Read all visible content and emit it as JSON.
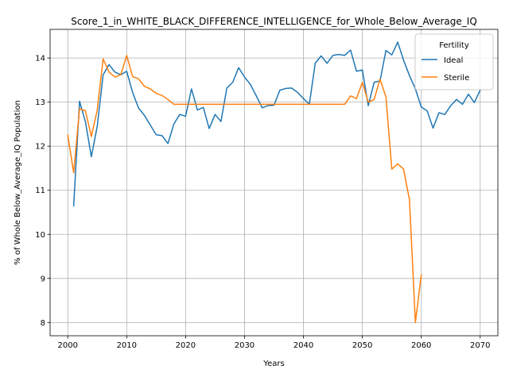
{
  "chart_data": {
    "type": "line",
    "title": "Score_1_in_WHITE_BLACK_DIFFERENCE_INTELLIGENCE_for_Whole_Below_Average_IQ",
    "xlabel": "Years",
    "ylabel": "% of Whole Below_Average_IQ Population",
    "xlim": [
      1997,
      2073
    ],
    "ylim": [
      7.7,
      14.65
    ],
    "xticks": [
      2000,
      2010,
      2020,
      2030,
      2040,
      2050,
      2060,
      2070
    ],
    "yticks": [
      8,
      9,
      10,
      11,
      12,
      13,
      14
    ],
    "grid": true,
    "legend": {
      "title": "Fertility",
      "position": "top-right"
    },
    "series": [
      {
        "name": "Ideal",
        "color": "#1f77b4",
        "x": [
          2001,
          2002,
          2003,
          2004,
          2005,
          2006,
          2007,
          2008,
          2009,
          2010,
          2011,
          2012,
          2013,
          2014,
          2015,
          2016,
          2017,
          2018,
          2019,
          2020,
          2021,
          2022,
          2023,
          2024,
          2025,
          2026,
          2027,
          2028,
          2029,
          2030,
          2031,
          2032,
          2033,
          2034,
          2035,
          2036,
          2037,
          2038,
          2039,
          2040,
          2041,
          2042,
          2043,
          2044,
          2045,
          2046,
          2047,
          2048,
          2049,
          2050,
          2051,
          2052,
          2053,
          2054,
          2055,
          2056,
          2057,
          2058,
          2059,
          2060,
          2061,
          2062,
          2063,
          2064,
          2065,
          2066,
          2067,
          2068,
          2069,
          2070
        ],
        "y": [
          10.65,
          13.02,
          12.55,
          11.76,
          12.45,
          13.62,
          13.85,
          13.68,
          13.62,
          13.7,
          13.22,
          12.87,
          12.7,
          12.48,
          12.26,
          12.24,
          12.06,
          12.5,
          12.72,
          12.68,
          13.3,
          12.82,
          12.88,
          12.4,
          12.72,
          12.56,
          13.32,
          13.45,
          13.78,
          13.57,
          13.4,
          13.14,
          12.87,
          12.92,
          12.93,
          13.27,
          13.31,
          13.32,
          13.22,
          13.08,
          12.95,
          13.88,
          14.05,
          13.88,
          14.06,
          14.08,
          14.06,
          14.18,
          13.7,
          13.73,
          12.92,
          13.45,
          13.48,
          14.17,
          14.07,
          14.36,
          13.95,
          13.6,
          13.3,
          12.89,
          12.8,
          12.41,
          12.76,
          12.72,
          12.92,
          13.06,
          12.95,
          13.18,
          12.99,
          13.27
        ]
      },
      {
        "name": "Sterile",
        "color": "#ff7f0e",
        "x": [
          2000,
          2001,
          2002,
          2003,
          2004,
          2005,
          2006,
          2007,
          2008,
          2009,
          2010,
          2011,
          2012,
          2013,
          2014,
          2015,
          2016,
          2017,
          2018,
          2019,
          2020,
          2021,
          2022,
          2023,
          2024,
          2025,
          2026,
          2027,
          2028,
          2029,
          2030,
          2031,
          2032,
          2033,
          2034,
          2035,
          2036,
          2037,
          2038,
          2039,
          2040,
          2041,
          2042,
          2043,
          2044,
          2045,
          2046,
          2047,
          2048,
          2049,
          2050,
          2051,
          2052,
          2053,
          2054,
          2055,
          2056,
          2057,
          2058,
          2059,
          2060
        ],
        "y": [
          12.25,
          11.4,
          12.85,
          12.8,
          12.22,
          12.82,
          13.98,
          13.68,
          13.57,
          13.62,
          14.06,
          13.58,
          13.53,
          13.36,
          13.3,
          13.2,
          13.15,
          13.06,
          12.95,
          12.95,
          12.95,
          12.95,
          12.95,
          12.95,
          12.95,
          12.95,
          12.95,
          12.95,
          12.95,
          12.95,
          12.95,
          12.95,
          12.95,
          12.95,
          12.95,
          12.95,
          12.95,
          12.95,
          12.95,
          12.95,
          12.95,
          12.95,
          12.95,
          12.95,
          12.95,
          12.95,
          12.95,
          12.95,
          13.14,
          13.08,
          13.45,
          13.0,
          13.06,
          13.52,
          13.12,
          11.48,
          11.6,
          11.48,
          10.78,
          8.0,
          9.08
        ]
      }
    ]
  }
}
